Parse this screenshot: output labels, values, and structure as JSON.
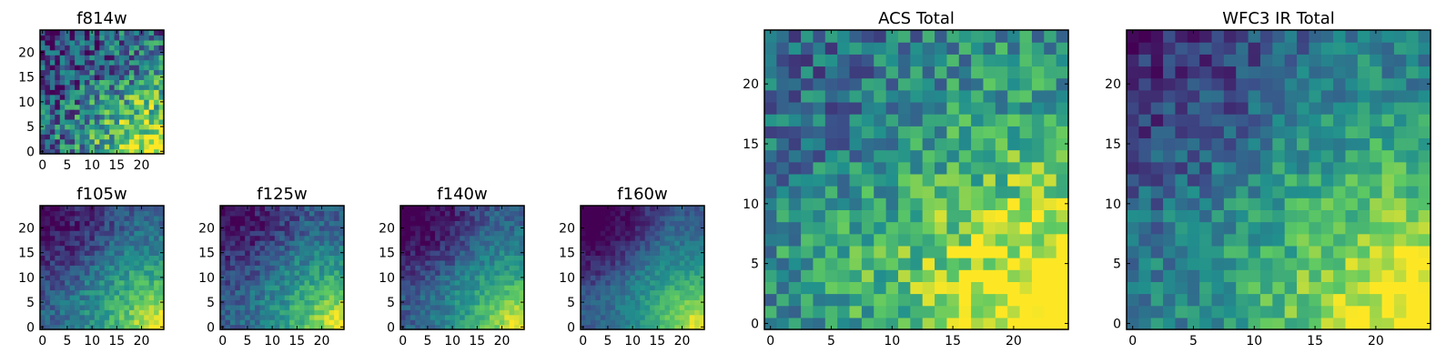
{
  "colormap": [
    "#440154",
    "#3b528b",
    "#21908d",
    "#5dc963",
    "#fde725"
  ],
  "chart_data": [
    {
      "type": "heatmap",
      "title": "f814w",
      "xticks": [
        "0",
        "5",
        "10",
        "15",
        "20"
      ],
      "yticks": [
        "0",
        "5",
        "10",
        "15",
        "20"
      ],
      "grid_size": [
        25,
        25
      ],
      "xlim": [
        -0.5,
        24.5
      ],
      "ylim": [
        -0.5,
        24.5
      ],
      "seed": 11,
      "pattern": {
        "bright_corner": "bottom-right",
        "noise": 0.32,
        "dark_corner_strength": 0.25,
        "base": 0.35
      }
    },
    {
      "type": "heatmap",
      "title": "f105w",
      "xticks": [
        "0",
        "5",
        "10",
        "15",
        "20"
      ],
      "yticks": [
        "0",
        "5",
        "10",
        "15",
        "20"
      ],
      "grid_size": [
        25,
        25
      ],
      "xlim": [
        -0.5,
        24.5
      ],
      "ylim": [
        -0.5,
        24.5
      ],
      "seed": 23,
      "pattern": {
        "bright_corner": "bottom-right",
        "noise": 0.12,
        "dark_corner_strength": 0.35,
        "base": 0.3
      }
    },
    {
      "type": "heatmap",
      "title": "f125w",
      "xticks": [
        "0",
        "5",
        "10",
        "15",
        "20"
      ],
      "yticks": [
        "0",
        "5",
        "10",
        "15",
        "20"
      ],
      "grid_size": [
        25,
        25
      ],
      "xlim": [
        -0.5,
        24.5
      ],
      "ylim": [
        -0.5,
        24.5
      ],
      "seed": 37,
      "pattern": {
        "bright_corner": "bottom-right",
        "noise": 0.12,
        "dark_corner_strength": 0.3,
        "base": 0.28
      }
    },
    {
      "type": "heatmap",
      "title": "f140w",
      "xticks": [
        "0",
        "5",
        "10",
        "15",
        "20"
      ],
      "yticks": [
        "0",
        "5",
        "10",
        "15",
        "20"
      ],
      "grid_size": [
        25,
        25
      ],
      "xlim": [
        -0.5,
        24.5
      ],
      "ylim": [
        -0.5,
        24.5
      ],
      "seed": 41,
      "pattern": {
        "bright_corner": "bottom-right",
        "noise": 0.1,
        "dark_corner_strength": 0.4,
        "base": 0.28
      }
    },
    {
      "type": "heatmap",
      "title": "f160w",
      "xticks": [
        "0",
        "5",
        "10",
        "15",
        "20"
      ],
      "yticks": [
        "0",
        "5",
        "10",
        "15",
        "20"
      ],
      "grid_size": [
        25,
        25
      ],
      "xlim": [
        -0.5,
        24.5
      ],
      "ylim": [
        -0.5,
        24.5
      ],
      "seed": 53,
      "pattern": {
        "bright_corner": "bottom-right",
        "noise": 0.08,
        "dark_corner_strength": 0.45,
        "base": 0.28
      }
    },
    {
      "type": "heatmap",
      "title": "ACS Total",
      "xticks": [
        "0",
        "5",
        "10",
        "15",
        "20"
      ],
      "yticks": [
        "0",
        "5",
        "10",
        "15",
        "20"
      ],
      "grid_size": [
        25,
        25
      ],
      "xlim": [
        -0.5,
        24.5
      ],
      "ylim": [
        -0.5,
        24.5
      ],
      "seed": 67,
      "pattern": {
        "bright_corner": "bottom-right",
        "noise": 0.22,
        "dark_corner_strength": 0.2,
        "base": 0.5
      }
    },
    {
      "type": "heatmap",
      "title": "WFC3 IR Total",
      "xticks": [
        "0",
        "5",
        "10",
        "15",
        "20"
      ],
      "yticks": [
        "0",
        "5",
        "10",
        "15",
        "20"
      ],
      "grid_size": [
        25,
        25
      ],
      "xlim": [
        -0.5,
        24.5
      ],
      "ylim": [
        -0.5,
        24.5
      ],
      "seed": 79,
      "pattern": {
        "bright_corner": "bottom-right",
        "noise": 0.16,
        "dark_corner_strength": 0.35,
        "base": 0.42
      }
    }
  ]
}
